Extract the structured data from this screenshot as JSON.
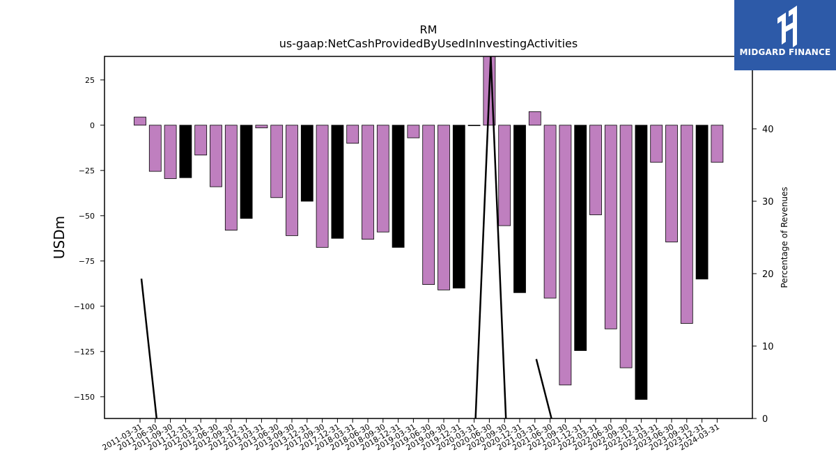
{
  "chart_data": {
    "type": "bar",
    "title": "RM",
    "subtitle": "us-gaap:NetCashProvidedByUsedInInvestingActivities",
    "ylabel": "USDm",
    "y2label": "Percentage of Revenues",
    "ylim": [
      -162,
      38
    ],
    "y2lim": [
      0,
      50
    ],
    "yticks": [
      25,
      0,
      -25,
      -50,
      -75,
      -100,
      -125,
      -150
    ],
    "y2ticks": [
      0,
      10,
      20,
      30,
      40
    ],
    "colors": {
      "bar": "#bf7fbf",
      "annual": "#000000",
      "line": "#000000"
    },
    "categories": [
      "2011-03-31",
      "2011-06-30",
      "2011-09-30",
      "2011-12-31",
      "2012-03-31",
      "2012-06-30",
      "2012-09-30",
      "2012-12-31",
      "2013-03-31",
      "2013-06-30",
      "2013-09-30",
      "2013-12-31",
      "2017-09-30",
      "2017-12-31",
      "2018-03-31",
      "2018-06-30",
      "2018-09-30",
      "2018-12-31",
      "2019-03-31",
      "2019-06-30",
      "2019-09-30",
      "2019-12-31",
      "2020-03-31",
      "2020-06-30",
      "2020-09-30",
      "2020-12-31",
      "2021-03-31",
      "2021-06-30",
      "2021-09-30",
      "2021-12-31",
      "2022-03-31",
      "2022-06-30",
      "2022-09-30",
      "2022-12-31",
      "2023-03-31",
      "2023-06-30",
      "2023-09-30",
      "2023-12-31",
      "2024-03-31"
    ],
    "values": [
      4.5,
      -25.5,
      -29.5,
      -29,
      -16.5,
      -34,
      -58,
      -51.5,
      -1.5,
      -40,
      -61,
      -42,
      -67.5,
      -62.5,
      -10,
      -63,
      -59,
      -67.5,
      -7,
      -88,
      -91,
      -90,
      -0.3,
      40,
      -55.5,
      -92.5,
      7.5,
      -95.5,
      -143.5,
      -124.5,
      -49.5,
      -112.5,
      -134,
      -151.5,
      -20.5,
      -64.5,
      -109.5,
      -85,
      -20.5
    ],
    "annual": [
      false,
      false,
      false,
      true,
      false,
      false,
      false,
      true,
      false,
      false,
      false,
      true,
      false,
      true,
      false,
      false,
      false,
      true,
      false,
      false,
      false,
      true,
      false,
      false,
      false,
      true,
      false,
      false,
      false,
      true,
      false,
      false,
      false,
      true,
      false,
      false,
      false,
      true,
      false
    ],
    "line_y2": [
      19.3,
      0,
      null,
      null,
      null,
      null,
      null,
      null,
      null,
      null,
      null,
      null,
      null,
      null,
      null,
      null,
      null,
      null,
      null,
      null,
      null,
      null,
      0,
      50,
      0,
      null,
      8.2,
      0,
      null,
      null,
      null,
      null,
      null,
      null,
      null,
      null,
      null,
      null,
      null
    ],
    "legend": "none",
    "grid": false
  },
  "logo": {
    "text": "MIDGARD FINANCE"
  }
}
